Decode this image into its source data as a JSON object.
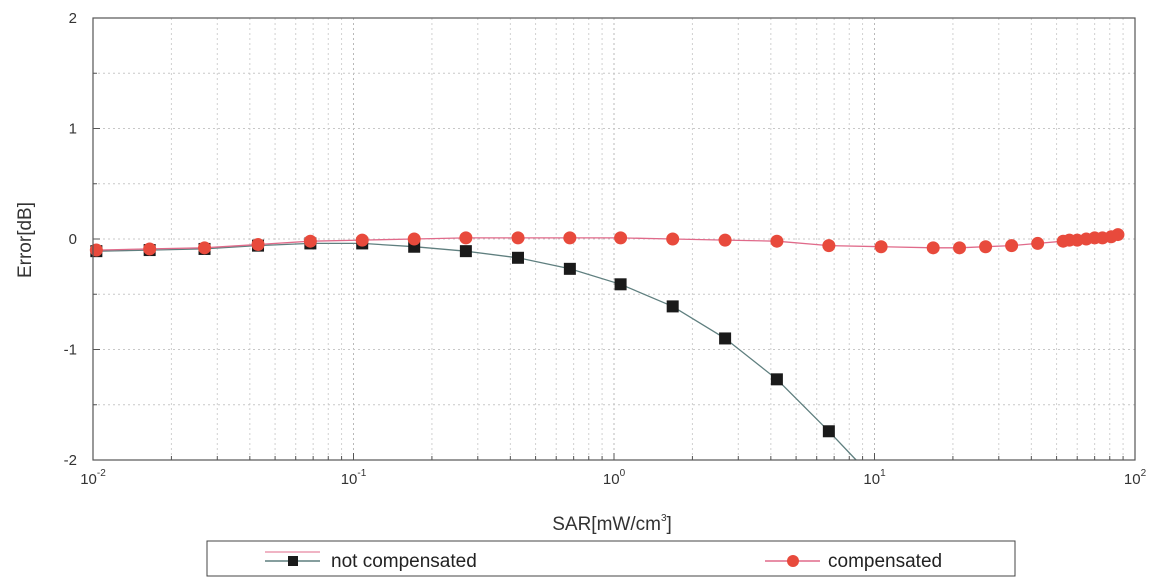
{
  "chart_data": {
    "type": "line",
    "title": "",
    "xlabel": "SAR[mW/cm",
    "xlabel_superscript": "3",
    "xlabel_suffix": "]",
    "ylabel": "Error[dB]",
    "x_scale": "log",
    "xlim": [
      0.01,
      100
    ],
    "ylim": [
      -2,
      2
    ],
    "x_ticks": [
      {
        "value": 0.01,
        "base": "10",
        "exp": "-2"
      },
      {
        "value": 0.1,
        "base": "10",
        "exp": "-1"
      },
      {
        "value": 1,
        "base": "10",
        "exp": "0"
      },
      {
        "value": 10,
        "base": "10",
        "exp": "1"
      },
      {
        "value": 100,
        "base": "10",
        "exp": "2"
      }
    ],
    "y_ticks": [
      {
        "value": -2,
        "label": "-2"
      },
      {
        "value": -1,
        "label": "-1"
      },
      {
        "value": 0,
        "label": "0"
      },
      {
        "value": 1,
        "label": "1"
      },
      {
        "value": 2,
        "label": "2"
      }
    ],
    "grid": true,
    "legend_position": "bottom",
    "series": [
      {
        "name": "not compensated",
        "marker": "square",
        "marker_color": "#1a1a1a",
        "line_color": "#5f7f7f",
        "points": [
          {
            "x": 0.0103,
            "y": -0.11
          },
          {
            "x": 0.0165,
            "y": -0.1
          },
          {
            "x": 0.0268,
            "y": -0.09
          },
          {
            "x": 0.043,
            "y": -0.06
          },
          {
            "x": 0.0683,
            "y": -0.04
          },
          {
            "x": 0.108,
            "y": -0.04
          },
          {
            "x": 0.171,
            "y": -0.07
          },
          {
            "x": 0.27,
            "y": -0.11
          },
          {
            "x": 0.428,
            "y": -0.17
          },
          {
            "x": 0.677,
            "y": -0.27
          },
          {
            "x": 1.06,
            "y": -0.41
          },
          {
            "x": 1.68,
            "y": -0.61
          },
          {
            "x": 2.67,
            "y": -0.9
          },
          {
            "x": 4.22,
            "y": -1.27
          },
          {
            "x": 6.68,
            "y": -1.74
          },
          {
            "x": 8.5,
            "y": -2.0
          }
        ]
      },
      {
        "name": "compensated",
        "marker": "circle",
        "marker_color": "#e84a3c",
        "line_color": "#e06a8a",
        "points": [
          {
            "x": 0.0103,
            "y": -0.1
          },
          {
            "x": 0.0165,
            "y": -0.09
          },
          {
            "x": 0.0268,
            "y": -0.08
          },
          {
            "x": 0.043,
            "y": -0.05
          },
          {
            "x": 0.0683,
            "y": -0.02
          },
          {
            "x": 0.108,
            "y": -0.01
          },
          {
            "x": 0.171,
            "y": 0.0
          },
          {
            "x": 0.27,
            "y": 0.01
          },
          {
            "x": 0.428,
            "y": 0.01
          },
          {
            "x": 0.677,
            "y": 0.01
          },
          {
            "x": 1.06,
            "y": 0.01
          },
          {
            "x": 1.68,
            "y": 0.0
          },
          {
            "x": 2.67,
            "y": -0.01
          },
          {
            "x": 4.22,
            "y": -0.02
          },
          {
            "x": 6.68,
            "y": -0.06
          },
          {
            "x": 10.6,
            "y": -0.07
          },
          {
            "x": 16.8,
            "y": -0.08
          },
          {
            "x": 21.2,
            "y": -0.08
          },
          {
            "x": 26.7,
            "y": -0.07
          },
          {
            "x": 33.6,
            "y": -0.06
          },
          {
            "x": 42.3,
            "y": -0.04
          },
          {
            "x": 53.0,
            "y": -0.02
          },
          {
            "x": 56.0,
            "y": -0.01
          },
          {
            "x": 60.0,
            "y": -0.01
          },
          {
            "x": 65.0,
            "y": 0.0
          },
          {
            "x": 70.0,
            "y": 0.01
          },
          {
            "x": 75.0,
            "y": 0.01
          },
          {
            "x": 81.0,
            "y": 0.02
          },
          {
            "x": 86.0,
            "y": 0.04
          }
        ]
      }
    ]
  }
}
